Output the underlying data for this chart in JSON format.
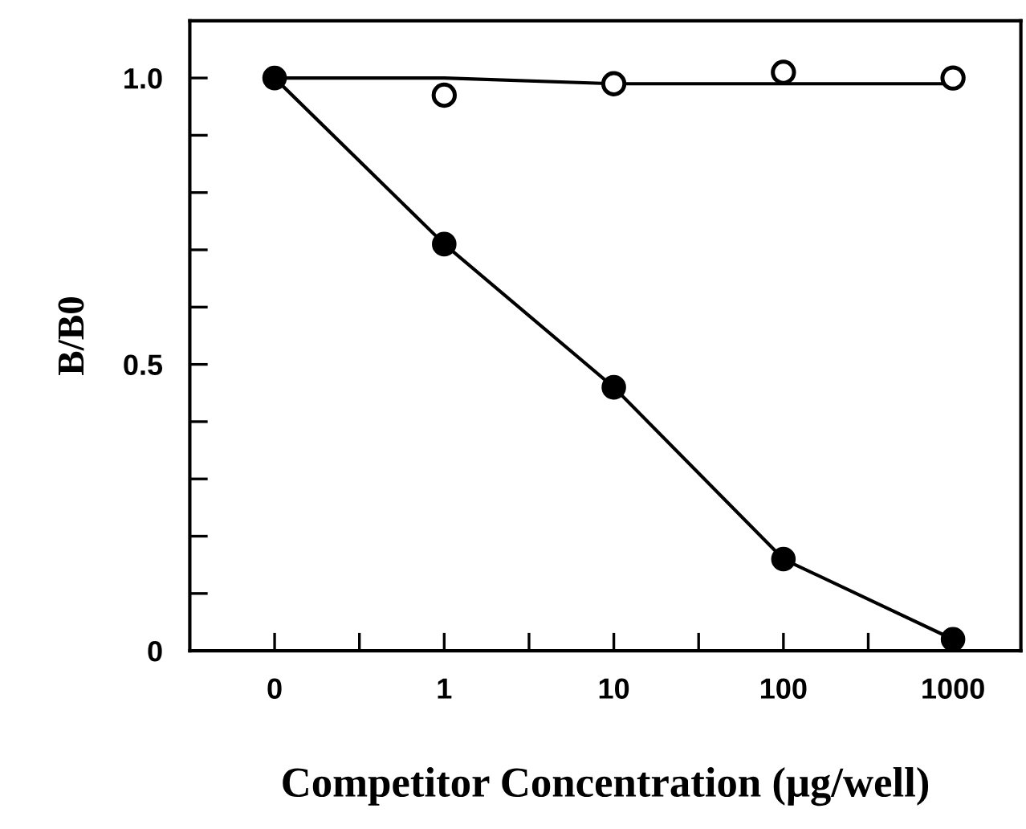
{
  "chart_data": {
    "type": "line",
    "xlabel": "Competitor Concentration (μg/well)",
    "ylabel": "B/B0",
    "categories": [
      "0",
      "1",
      "10",
      "100",
      "1000"
    ],
    "ylim": [
      0,
      1.1
    ],
    "yticks": [
      0,
      {
        "value": 0.1,
        "label": null
      },
      {
        "value": 0.2,
        "label": null
      },
      {
        "value": 0.3,
        "label": null
      },
      {
        "value": 0.4,
        "label": null
      },
      {
        "value": 0.5,
        "label": "0.5"
      },
      {
        "value": 0.6,
        "label": null
      },
      {
        "value": 0.7,
        "label": null
      },
      {
        "value": 0.8,
        "label": null
      },
      {
        "value": 0.9,
        "label": null
      },
      {
        "value": 1.0,
        "label": "1.0"
      }
    ],
    "grid": false,
    "legend": false,
    "series": [
      {
        "marker": "circle",
        "color": "#000000",
        "values": [
          1.0,
          0.71,
          0.46,
          0.16,
          0.02
        ]
      },
      {
        "type": "scatter",
        "marker": "circle",
        "color": "#000000",
        "values": [
          null,
          0.97,
          0.99,
          1.01,
          1.0
        ]
      },
      {
        "type": "line",
        "color": "#000000",
        "values": [
          1.0,
          1.0,
          0.99,
          0.99,
          0.99
        ]
      }
    ]
  }
}
